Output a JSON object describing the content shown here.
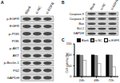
{
  "panel_labels": [
    "A",
    "B",
    "C"
  ],
  "panel_a": {
    "columns": [
      "Blank",
      "si-NC",
      "si-EGFR"
    ],
    "rows": [
      "p-EGFR",
      "EGFR",
      "p-PI3K",
      "PI3K",
      "p-AKT",
      "AKT",
      "p-Beclin-1",
      "P62",
      "GAPDH"
    ]
  },
  "panel_b": {
    "columns": [
      "Blank",
      "si-NC",
      "si-EGFR"
    ],
    "rows": [
      "Caspase-9",
      "Caspase-3",
      "Bax",
      "Bcl-2",
      "GAPDH"
    ]
  },
  "chart_data": {
    "type": "bar",
    "y_label": "Cell viability (%)",
    "categories": [
      "24h",
      "48h",
      "72h"
    ],
    "series": [
      {
        "name": "Blank",
        "color": "#000000",
        "values": [
          100,
          100,
          100
        ]
      },
      {
        "name": "si-NC",
        "color": "#8c8c8c",
        "values": [
          98,
          97,
          99
        ]
      },
      {
        "name": "si-EGFR",
        "color": "#ffffff",
        "values": [
          75,
          60,
          45
        ]
      }
    ],
    "ylim": [
      0,
      150
    ],
    "yticks": [
      0,
      50,
      100,
      150
    ],
    "legend": "top-right"
  }
}
